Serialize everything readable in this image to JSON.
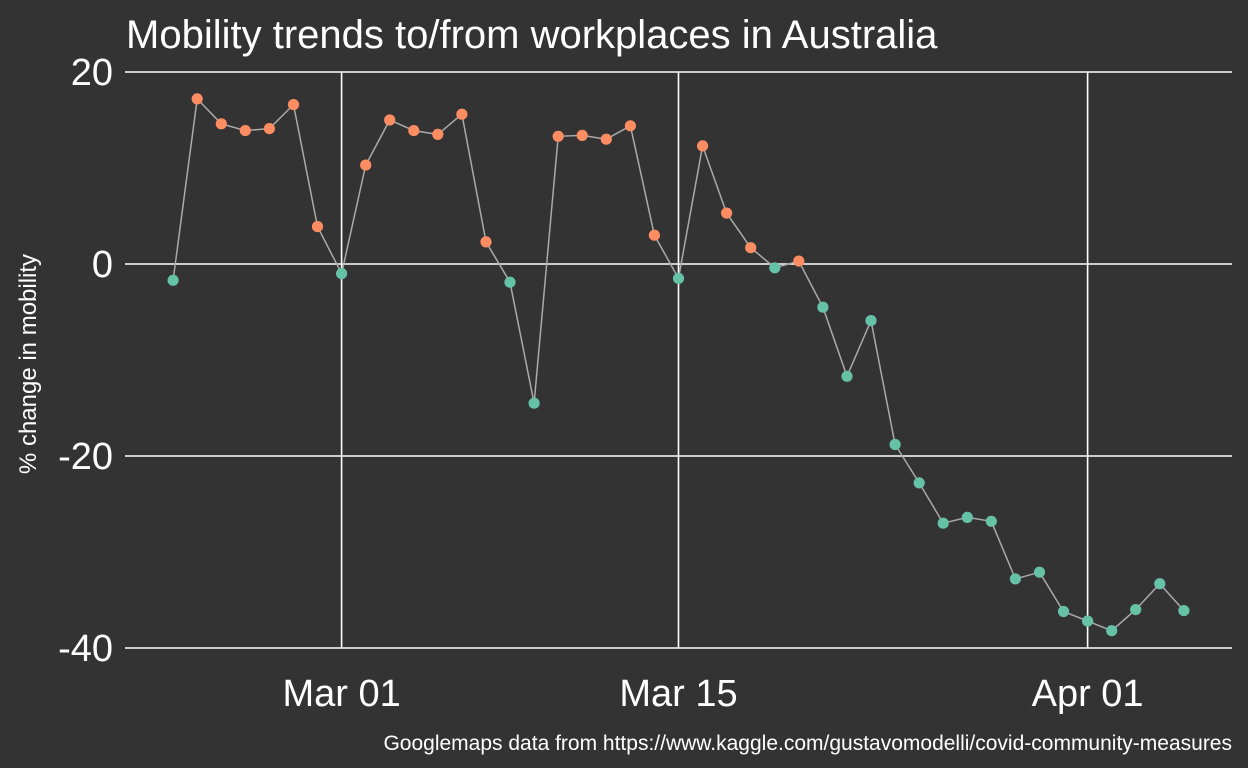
{
  "chart_data": {
    "type": "scatter",
    "title": "Mobility trends to/from workplaces in Australia",
    "xlabel": "",
    "ylabel": "% change in mobility",
    "caption": "Googlemaps data from https://www.kaggle.com/gustavomodelli/covid-community-measures",
    "x_ticks": [
      "Mar 01",
      "Mar 15",
      "Apr 01"
    ],
    "y_ticks": [
      "20",
      "0",
      "-20",
      "-40"
    ],
    "ylim": [
      -40,
      20
    ],
    "xlim": [
      "2020-02-21",
      "2020-04-07"
    ],
    "grid": true,
    "connected_line": true,
    "colors": {
      "background": "#333333",
      "grid": "#ffffff",
      "line": "#aaaaaa",
      "positive": "#fc8d62",
      "negative": "#66c2a5"
    },
    "point_color_rule": "orange when value > 0, teal when value <= 0",
    "series": [
      {
        "points": [
          {
            "x": "2020-02-23",
            "y": -1.7
          },
          {
            "x": "2020-02-24",
            "y": 17.2
          },
          {
            "x": "2020-02-25",
            "y": 14.6
          },
          {
            "x": "2020-02-26",
            "y": 13.9
          },
          {
            "x": "2020-02-27",
            "y": 14.1
          },
          {
            "x": "2020-02-28",
            "y": 16.6
          },
          {
            "x": "2020-02-29",
            "y": 3.9
          },
          {
            "x": "2020-03-01",
            "y": -1.0
          },
          {
            "x": "2020-03-02",
            "y": 10.3
          },
          {
            "x": "2020-03-03",
            "y": 15.0
          },
          {
            "x": "2020-03-04",
            "y": 13.9
          },
          {
            "x": "2020-03-05",
            "y": 13.5
          },
          {
            "x": "2020-03-06",
            "y": 15.6
          },
          {
            "x": "2020-03-07",
            "y": 2.3
          },
          {
            "x": "2020-03-08",
            "y": -1.9
          },
          {
            "x": "2020-03-09",
            "y": -14.5
          },
          {
            "x": "2020-03-10",
            "y": 13.3
          },
          {
            "x": "2020-03-11",
            "y": 13.4
          },
          {
            "x": "2020-03-12",
            "y": 13.0
          },
          {
            "x": "2020-03-13",
            "y": 14.4
          },
          {
            "x": "2020-03-14",
            "y": 3.0
          },
          {
            "x": "2020-03-15",
            "y": -1.5
          },
          {
            "x": "2020-03-16",
            "y": 12.3
          },
          {
            "x": "2020-03-17",
            "y": 5.3
          },
          {
            "x": "2020-03-18",
            "y": 1.7
          },
          {
            "x": "2020-03-19",
            "y": -0.4
          },
          {
            "x": "2020-03-20",
            "y": 0.3
          },
          {
            "x": "2020-03-21",
            "y": -4.5
          },
          {
            "x": "2020-03-22",
            "y": -11.7
          },
          {
            "x": "2020-03-23",
            "y": -5.9
          },
          {
            "x": "2020-03-24",
            "y": -18.8
          },
          {
            "x": "2020-03-25",
            "y": -22.8
          },
          {
            "x": "2020-03-26",
            "y": -27.0
          },
          {
            "x": "2020-03-27",
            "y": -26.4
          },
          {
            "x": "2020-03-28",
            "y": -26.8
          },
          {
            "x": "2020-03-29",
            "y": -32.8
          },
          {
            "x": "2020-03-30",
            "y": -32.1
          },
          {
            "x": "2020-03-31",
            "y": -36.2
          },
          {
            "x": "2020-04-01",
            "y": -37.2
          },
          {
            "x": "2020-04-02",
            "y": -38.2
          },
          {
            "x": "2020-04-03",
            "y": -36.0
          },
          {
            "x": "2020-04-04",
            "y": -33.3
          },
          {
            "x": "2020-04-05",
            "y": -36.1
          }
        ]
      }
    ]
  }
}
